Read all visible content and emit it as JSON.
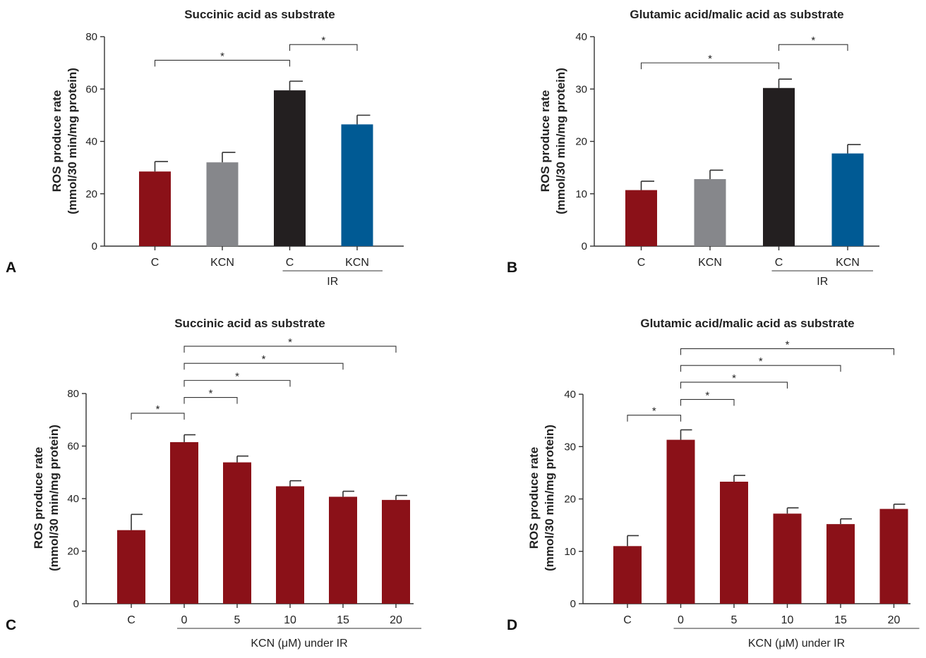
{
  "chart_data": [
    {
      "panel": "A",
      "type": "bar",
      "title": "Succinic acid as substrate",
      "ylabel": "ROS produce rate\n(mmol/30 min/mg protein)",
      "ylim": [
        0,
        80
      ],
      "yticks": [
        0,
        20,
        40,
        60,
        80
      ],
      "categories": [
        "C",
        "KCN",
        "C",
        "KCN"
      ],
      "values": [
        28.5,
        32,
        59.5,
        46.5
      ],
      "errors": [
        3.8,
        3.8,
        3.5,
        3.5
      ],
      "colors": [
        "#8b1118",
        "#86878b",
        "#231f20",
        "#005a94"
      ],
      "group_label": {
        "text": "IR",
        "from": 2,
        "to": 3
      },
      "significance": [
        {
          "from": 0,
          "to": 2,
          "y": 71,
          "label": "*"
        },
        {
          "from": 2,
          "to": 3,
          "y": 77,
          "label": "*"
        }
      ]
    },
    {
      "panel": "B",
      "type": "bar",
      "title": "Glutamic acid/malic acid as substrate",
      "ylabel": "ROS produce rate\n(mmol/30 min/mg protein)",
      "ylim": [
        0,
        40
      ],
      "yticks": [
        0,
        10,
        20,
        30,
        40
      ],
      "categories": [
        "C",
        "KCN",
        "C",
        "KCN"
      ],
      "values": [
        10.7,
        12.8,
        30.2,
        17.7
      ],
      "errors": [
        1.7,
        1.7,
        1.7,
        1.7
      ],
      "colors": [
        "#8b1118",
        "#86878b",
        "#231f20",
        "#005a94"
      ],
      "group_label": {
        "text": "IR",
        "from": 2,
        "to": 3
      },
      "significance": [
        {
          "from": 0,
          "to": 2,
          "y": 35,
          "label": "*"
        },
        {
          "from": 2,
          "to": 3,
          "y": 38.5,
          "label": "*"
        }
      ]
    },
    {
      "panel": "C",
      "type": "bar",
      "title": "Succinic acid as substrate",
      "ylabel": "ROS produce rate\n(mmol/30 min/mg protein)",
      "ylim": [
        0,
        80
      ],
      "yticks": [
        0,
        20,
        40,
        60,
        80
      ],
      "categories": [
        "C",
        "0",
        "5",
        "10",
        "15",
        "20"
      ],
      "values": [
        28,
        61.5,
        53.8,
        44.7,
        40.7,
        39.5
      ],
      "errors": [
        6,
        2.8,
        2.4,
        2.1,
        2.1,
        1.7
      ],
      "colors": [
        "#8b1118",
        "#8b1118",
        "#8b1118",
        "#8b1118",
        "#8b1118",
        "#8b1118"
      ],
      "group_label": {
        "text": "KCN (μM) under IR",
        "from": 1,
        "to": 5
      },
      "significance": [
        {
          "from": 0,
          "to": 1,
          "y": 72.5,
          "label": "*"
        },
        {
          "from": 1,
          "to": 2,
          "y": 78.5,
          "label": "*"
        },
        {
          "from": 1,
          "to": 3,
          "y": 85,
          "label": "*"
        },
        {
          "from": 1,
          "to": 4,
          "y": 91.5,
          "label": "*"
        },
        {
          "from": 1,
          "to": 5,
          "y": 98,
          "label": "*"
        }
      ]
    },
    {
      "panel": "D",
      "type": "bar",
      "title": "Glutamic acid/malic acid as substrate",
      "ylabel": "ROS produce rate\n(mmol/30 min/mg protein)",
      "ylim": [
        0,
        40
      ],
      "yticks": [
        0,
        10,
        20,
        30,
        40
      ],
      "categories": [
        "C",
        "0",
        "5",
        "10",
        "15",
        "20"
      ],
      "values": [
        11,
        31.3,
        23.3,
        17.2,
        15.2,
        18.1
      ],
      "errors": [
        2,
        1.9,
        1.2,
        1.1,
        1,
        0.9
      ],
      "colors": [
        "#8b1118",
        "#8b1118",
        "#8b1118",
        "#8b1118",
        "#8b1118",
        "#8b1118"
      ],
      "group_label": {
        "text": "KCN (μM) under IR",
        "from": 1,
        "to": 5
      },
      "significance": [
        {
          "from": 0,
          "to": 1,
          "y": 36,
          "label": "*"
        },
        {
          "from": 1,
          "to": 2,
          "y": 39,
          "label": "*"
        },
        {
          "from": 1,
          "to": 3,
          "y": 42.3,
          "label": "*"
        },
        {
          "from": 1,
          "to": 4,
          "y": 45.5,
          "label": "*"
        },
        {
          "from": 1,
          "to": 5,
          "y": 48.7,
          "label": "*"
        }
      ]
    }
  ]
}
